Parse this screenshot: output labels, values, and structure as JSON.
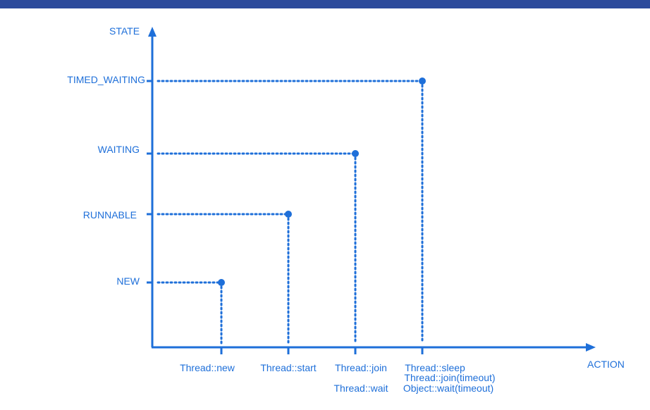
{
  "colors": {
    "top_bar": "#2b4a9b",
    "chart": "#1e6fd9"
  },
  "chart_data": {
    "type": "scatter",
    "ylabel": "STATE",
    "xlabel": "ACTION",
    "categories_y": [
      "NEW",
      "RUNNABLE",
      "WAITING",
      "TIMED_WAITING"
    ],
    "categories_x": [
      [
        "Thread::new"
      ],
      [
        "Thread::start"
      ],
      [
        "Thread::join",
        "Thread::wait"
      ],
      [
        "Thread::sleep",
        "Thread::join(timeout)",
        "Object::wait(timeout)"
      ]
    ],
    "points": [
      {
        "x": "Thread::new",
        "y": "NEW"
      },
      {
        "x": "Thread::start",
        "y": "RUNNABLE"
      },
      {
        "x": "Thread::join",
        "y": "WAITING"
      },
      {
        "x": "Thread::sleep",
        "y": "TIMED_WAITING"
      }
    ],
    "grid": false,
    "guide_lines": "dotted"
  }
}
